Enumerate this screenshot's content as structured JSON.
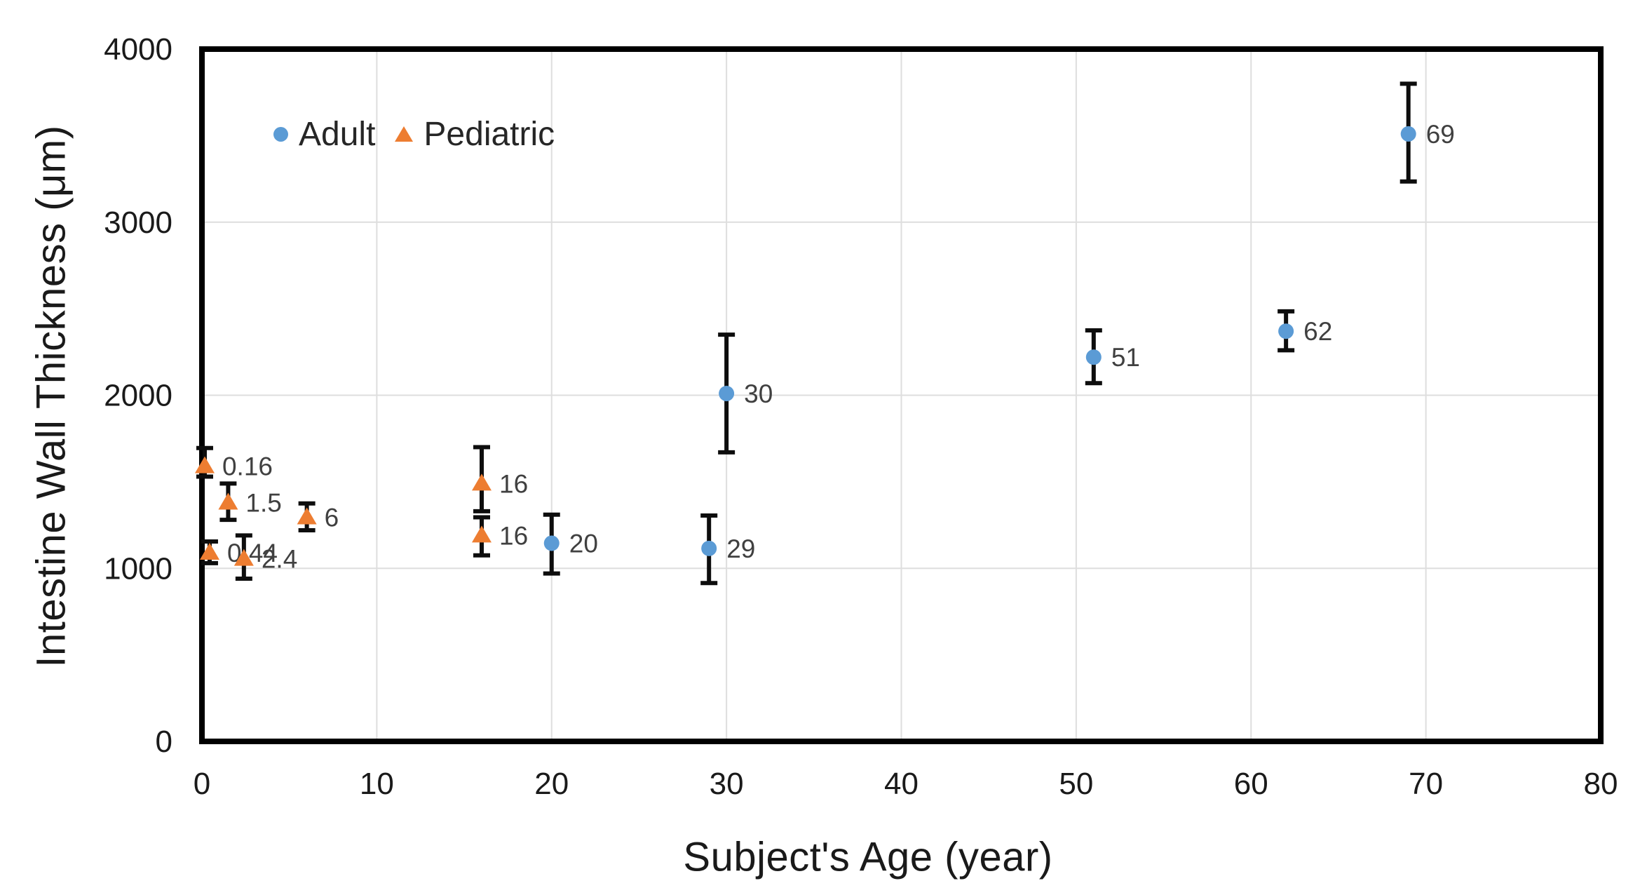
{
  "chart_data": {
    "type": "scatter",
    "title": "",
    "xlabel": "Subject's Age (year)",
    "ylabel": "Intestine Wall Thickness (μm)",
    "xlim": [
      0,
      80
    ],
    "ylim": [
      0,
      4000
    ],
    "x_ticks": [
      "0",
      "10",
      "20",
      "30",
      "40",
      "50",
      "60",
      "70",
      "80"
    ],
    "x_tick_values": [
      0,
      10,
      20,
      30,
      40,
      50,
      60,
      70,
      80
    ],
    "y_ticks": [
      "0",
      "1000",
      "2000",
      "3000",
      "4000"
    ],
    "y_tick_values": [
      0,
      1000,
      2000,
      3000,
      4000
    ],
    "grid": true,
    "legend_position": "inside-top-left",
    "colors": {
      "adult": "#5B9BD5",
      "pediatric": "#ED7D31",
      "error_bar": "#0d0d0d",
      "grid": "#DEDEDE",
      "frame": "#000000",
      "tick_label": "#1a1a1a",
      "data_label": "#404040"
    },
    "series": [
      {
        "name": "Adult",
        "marker": "circle",
        "color": "#5B9BD5",
        "points": [
          {
            "x": 20,
            "y": 1145,
            "err_low": 970,
            "err_high": 1310,
            "label": "20"
          },
          {
            "x": 29,
            "y": 1115,
            "err_low": 915,
            "err_high": 1305,
            "label": "29"
          },
          {
            "x": 30,
            "y": 2010,
            "err_low": 1670,
            "err_high": 2350,
            "label": "30"
          },
          {
            "x": 51,
            "y": 2220,
            "err_low": 2070,
            "err_high": 2375,
            "label": "51"
          },
          {
            "x": 62,
            "y": 2370,
            "err_low": 2260,
            "err_high": 2485,
            "label": "62"
          },
          {
            "x": 69,
            "y": 3510,
            "err_low": 3235,
            "err_high": 3800,
            "label": "69"
          }
        ]
      },
      {
        "name": "Pediatric",
        "marker": "triangle",
        "color": "#ED7D31",
        "points": [
          {
            "x": 0.16,
            "y": 1590,
            "err_low": 1530,
            "err_high": 1695,
            "label": "0.16"
          },
          {
            "x": 0.44,
            "y": 1090,
            "err_low": 1030,
            "err_high": 1155,
            "label": "0.44"
          },
          {
            "x": 1.5,
            "y": 1380,
            "err_low": 1280,
            "err_high": 1490,
            "label": "1.5"
          },
          {
            "x": 2.4,
            "y": 1055,
            "err_low": 940,
            "err_high": 1190,
            "label": "2.4"
          },
          {
            "x": 6,
            "y": 1295,
            "err_low": 1220,
            "err_high": 1375,
            "label": "6"
          },
          {
            "x": 16,
            "y": 1490,
            "err_low": 1330,
            "err_high": 1700,
            "label": "16"
          },
          {
            "x": 16,
            "y": 1190,
            "err_low": 1075,
            "err_high": 1295,
            "label": "16"
          }
        ]
      }
    ]
  }
}
